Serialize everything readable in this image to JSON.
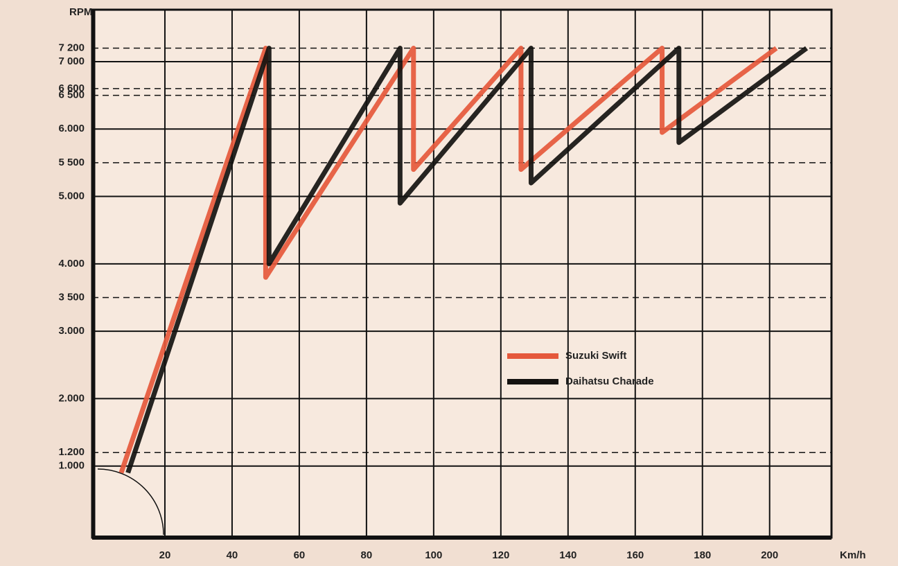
{
  "chart_data": {
    "type": "line",
    "x_label": "Km/h",
    "y_label": "RPM",
    "xlim": [
      0,
      218
    ],
    "ylim": [
      0,
      7750
    ],
    "xticks": [
      20,
      40,
      60,
      80,
      100,
      120,
      140,
      160,
      180,
      200
    ],
    "yticks": [
      {
        "value": 1000,
        "label": "1.000"
      },
      {
        "value": 1200,
        "label": "1.200"
      },
      {
        "value": 2000,
        "label": "2.000"
      },
      {
        "value": 3000,
        "label": "3.000"
      },
      {
        "value": 3500,
        "label": "3 500"
      },
      {
        "value": 4000,
        "label": "4.000"
      },
      {
        "value": 5000,
        "label": "5.000"
      },
      {
        "value": 5500,
        "label": "5 500"
      },
      {
        "value": 6000,
        "label": "6.000"
      },
      {
        "value": 6500,
        "label": "6 500"
      },
      {
        "value": 6600,
        "label": "6 600"
      },
      {
        "value": 7000,
        "label": "7 000"
      },
      {
        "value": 7200,
        "label": "7 200"
      }
    ],
    "grid": true,
    "series": [
      {
        "name": "Suzuki Swift",
        "color": "#e5583b",
        "x": [
          7,
          50,
          50,
          94,
          94,
          126,
          126,
          168,
          168,
          202
        ],
        "values": [
          900,
          7200,
          3800,
          7200,
          5400,
          7200,
          5400,
          7200,
          5950,
          7200
        ]
      },
      {
        "name": "Daihatsu Charade",
        "color": "#141210",
        "x": [
          9,
          51,
          51,
          90,
          90,
          129,
          129,
          173,
          173,
          211
        ],
        "values": [
          900,
          7200,
          4000,
          7200,
          4900,
          7200,
          5200,
          7200,
          5800,
          7200
        ]
      }
    ]
  }
}
